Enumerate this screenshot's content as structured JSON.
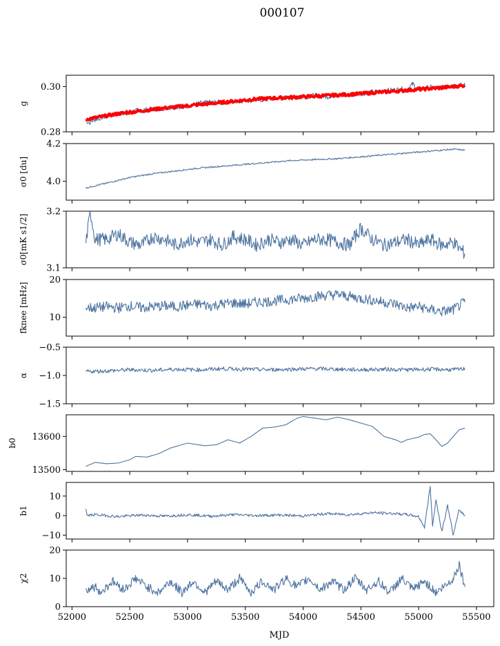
{
  "title": "000107",
  "xlabel": "MJD",
  "xlim": [
    51950,
    55650
  ],
  "xticks": [
    52000,
    52500,
    53000,
    53500,
    54000,
    54500,
    55000,
    55500
  ],
  "colors": {
    "series": "#4c72a0",
    "fit": "#ff0000",
    "axis": "#000000"
  },
  "chart_data": [
    {
      "type": "line",
      "ylabel": "g",
      "ylim": [
        0.28,
        0.305
      ],
      "yticks": [
        0.28,
        0.3
      ],
      "ytick_labels": [
        "0.28",
        "0.30"
      ],
      "series": [
        {
          "x": [
            52120,
            52150,
            52200,
            52300,
            52400,
            52500,
            52600,
            52700,
            52800,
            52900,
            53000,
            53100,
            53200,
            53300,
            53400,
            53500,
            53600,
            53700,
            53800,
            53900,
            54000,
            54100,
            54200,
            54300,
            54400,
            54500,
            54600,
            54700,
            54800,
            54900,
            54950,
            55000,
            55100,
            55200,
            55300,
            55400
          ],
          "y": [
            0.285,
            0.284,
            0.2855,
            0.287,
            0.288,
            0.289,
            0.2895,
            0.29,
            0.2905,
            0.291,
            0.2915,
            0.2925,
            0.293,
            0.293,
            0.2935,
            0.294,
            0.294,
            0.2945,
            0.295,
            0.295,
            0.2955,
            0.296,
            0.2955,
            0.2965,
            0.2965,
            0.297,
            0.2975,
            0.298,
            0.2985,
            0.299,
            0.301,
            0.299,
            0.2995,
            0.2995,
            0.3005,
            0.3005
          ]
        },
        {
          "x": [
            52120,
            52400,
            52800,
            53200,
            53600,
            54000,
            54400,
            54800,
            55200,
            55400
          ],
          "y": [
            0.2855,
            0.288,
            0.2905,
            0.2925,
            0.2945,
            0.2955,
            0.2965,
            0.298,
            0.2995,
            0.3005
          ]
        }
      ]
    },
    {
      "type": "line",
      "ylabel": "σ0 [du]",
      "ylim": [
        3.9,
        4.2
      ],
      "yticks": [
        4.0,
        4.2
      ],
      "ytick_labels": [
        "4.0",
        "4.2"
      ],
      "series": [
        {
          "x": [
            52120,
            52300,
            52500,
            52700,
            52900,
            53100,
            53300,
            53500,
            53700,
            53900,
            54100,
            54300,
            54500,
            54700,
            54900,
            55100,
            55300,
            55400
          ],
          "y": [
            3.965,
            3.99,
            4.02,
            4.04,
            4.055,
            4.07,
            4.08,
            4.09,
            4.1,
            4.11,
            4.115,
            4.12,
            4.13,
            4.14,
            4.15,
            4.16,
            4.17,
            4.165
          ]
        }
      ]
    },
    {
      "type": "line",
      "ylabel": "σ0[mK s1/2]",
      "ylim": [
        3.1,
        3.2
      ],
      "yticks": [
        3.1,
        3.2
      ],
      "ytick_labels": [
        "3.1",
        "3.2"
      ],
      "series": [
        {
          "x": [
            52120,
            52160,
            52200,
            52300,
            52400,
            52500,
            52600,
            52700,
            52800,
            52900,
            53000,
            53100,
            53200,
            53300,
            53400,
            53500,
            53600,
            53700,
            53800,
            53900,
            54000,
            54100,
            54200,
            54300,
            54400,
            54500,
            54600,
            54700,
            54800,
            54900,
            55000,
            55100,
            55200,
            55300,
            55400
          ],
          "y": [
            3.145,
            3.198,
            3.15,
            3.15,
            3.16,
            3.145,
            3.14,
            3.155,
            3.15,
            3.14,
            3.15,
            3.145,
            3.15,
            3.14,
            3.155,
            3.15,
            3.14,
            3.15,
            3.145,
            3.15,
            3.14,
            3.15,
            3.15,
            3.145,
            3.14,
            3.17,
            3.15,
            3.14,
            3.145,
            3.15,
            3.14,
            3.15,
            3.14,
            3.145,
            3.125
          ]
        }
      ]
    },
    {
      "type": "line",
      "ylabel": "fknee [mHz]",
      "ylim": [
        5,
        20
      ],
      "yticks": [
        10,
        20
      ],
      "ytick_labels": [
        "10",
        "20"
      ],
      "series": [
        {
          "x": [
            52120,
            52200,
            52300,
            52400,
            52500,
            52600,
            52700,
            52800,
            52900,
            53000,
            53100,
            53200,
            53300,
            53400,
            53500,
            53600,
            53700,
            53800,
            53900,
            54000,
            54100,
            54200,
            54300,
            54400,
            54500,
            54600,
            54700,
            54800,
            54900,
            55000,
            55100,
            55200,
            55300,
            55400
          ],
          "y": [
            12.5,
            12.5,
            12.8,
            12.5,
            13,
            12.5,
            12.8,
            13,
            12.8,
            13.2,
            13.5,
            13,
            13.5,
            13.8,
            13.5,
            14,
            14.2,
            14.5,
            14.8,
            15,
            15.5,
            15.8,
            16,
            15.5,
            15,
            14.5,
            14,
            13.5,
            12.5,
            12.8,
            12,
            11.5,
            12,
            14
          ]
        }
      ]
    },
    {
      "type": "line",
      "ylabel": "α",
      "ylim": [
        -1.5,
        -0.5
      ],
      "yticks": [
        -1.5,
        -1.0,
        -0.5
      ],
      "ytick_labels": [
        "−1.5",
        "−1.0",
        "−0.5"
      ],
      "series": [
        {
          "x": [
            52120,
            52300,
            52500,
            52700,
            52900,
            53100,
            53300,
            53500,
            53700,
            53900,
            54100,
            54300,
            54500,
            54700,
            54900,
            55100,
            55300,
            55400
          ],
          "y": [
            -0.93,
            -0.92,
            -0.9,
            -0.91,
            -0.89,
            -0.9,
            -0.88,
            -0.89,
            -0.9,
            -0.89,
            -0.88,
            -0.89,
            -0.9,
            -0.89,
            -0.9,
            -0.89,
            -0.9,
            -0.88
          ]
        }
      ]
    },
    {
      "type": "line",
      "ylabel": "b0",
      "ylim": [
        13495,
        13665
      ],
      "yticks": [
        13500,
        13600
      ],
      "ytick_labels": [
        "13500",
        "13600"
      ],
      "series": [
        {
          "x": [
            52120,
            52200,
            52300,
            52400,
            52500,
            52550,
            52650,
            52750,
            52850,
            53000,
            53150,
            53250,
            53350,
            53450,
            53550,
            53650,
            53750,
            53850,
            53950,
            54000,
            54100,
            54200,
            54300,
            54400,
            54500,
            54600,
            54700,
            54800,
            54850,
            54900,
            54950,
            55000,
            55050,
            55100,
            55150,
            55200,
            55250,
            55300,
            55350,
            55400
          ],
          "y": [
            13510,
            13522,
            13518,
            13520,
            13530,
            13540,
            13538,
            13548,
            13565,
            13580,
            13572,
            13575,
            13590,
            13580,
            13600,
            13625,
            13628,
            13635,
            13655,
            13660,
            13655,
            13650,
            13658,
            13650,
            13640,
            13630,
            13600,
            13590,
            13582,
            13590,
            13594,
            13598,
            13606,
            13608,
            13590,
            13570,
            13580,
            13600,
            13620,
            13625
          ]
        }
      ]
    },
    {
      "type": "line",
      "ylabel": "b1",
      "ylim": [
        -12,
        17
      ],
      "yticks": [
        -10,
        0,
        10
      ],
      "ytick_labels": [
        "−10",
        "0",
        "10"
      ],
      "series": [
        {
          "x": [
            52120,
            52130,
            52200,
            52400,
            52600,
            52800,
            53000,
            53200,
            53400,
            53600,
            53800,
            54000,
            54200,
            54400,
            54600,
            54800,
            54900,
            55000,
            55050,
            55100,
            55120,
            55150,
            55200,
            55250,
            55300,
            55350,
            55400
          ],
          "y": [
            3.5,
            0,
            0.5,
            -0.5,
            0.3,
            -0.3,
            0.5,
            -0.3,
            0.5,
            0,
            0.3,
            -0.2,
            1,
            0.5,
            1.5,
            1,
            0.5,
            -0.5,
            -6,
            15,
            -5,
            8,
            -8,
            5,
            -10,
            3,
            0
          ]
        }
      ]
    },
    {
      "type": "line",
      "ylabel": "χ2",
      "ylim": [
        0,
        20
      ],
      "yticks": [
        0,
        10,
        20
      ],
      "ytick_labels": [
        "0",
        "10",
        "20"
      ],
      "series": [
        {
          "x": [
            52120,
            52200,
            52250,
            52350,
            52450,
            52550,
            52650,
            52750,
            52850,
            52950,
            53050,
            53150,
            53250,
            53350,
            53450,
            53550,
            53650,
            53750,
            53850,
            53950,
            54050,
            54150,
            54250,
            54350,
            54450,
            54550,
            54650,
            54750,
            54850,
            54950,
            55050,
            55150,
            55250,
            55300,
            55350,
            55400
          ],
          "y": [
            6,
            7,
            5,
            9,
            6,
            10,
            7,
            5,
            9,
            5,
            9,
            5,
            9,
            6,
            10,
            5,
            9,
            6,
            10,
            7,
            10,
            6,
            9,
            6,
            10,
            6,
            9,
            5,
            10,
            6,
            9,
            5,
            8,
            10,
            15,
            7
          ]
        }
      ]
    }
  ]
}
